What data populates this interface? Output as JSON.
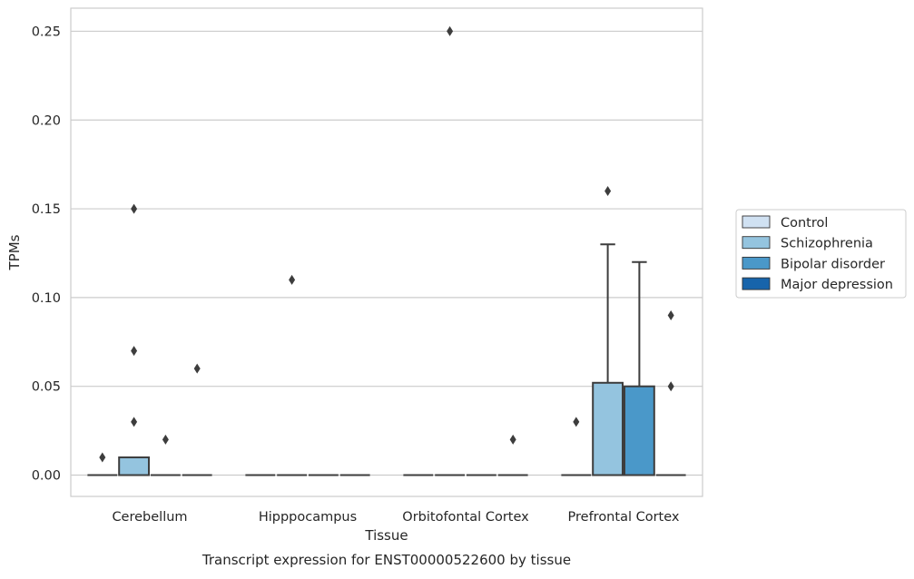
{
  "chart_data": {
    "type": "box",
    "title": "",
    "xlabel": "Tissue",
    "ylabel": "TPMs",
    "caption": "Transcript expression for ENST00000522600 by tissue",
    "ylim": [
      -0.012,
      0.263
    ],
    "yticks": [
      0.0,
      0.05,
      0.1,
      0.15,
      0.2,
      0.25
    ],
    "ytick_labels": [
      "0.00",
      "0.05",
      "0.10",
      "0.15",
      "0.20",
      "0.25"
    ],
    "grid": "horizontal",
    "legend_position": "right",
    "categories": [
      "Cerebellum",
      "Hipppocampus",
      "Orbitofontal Cortex",
      "Prefrontal Cortex"
    ],
    "series": [
      {
        "name": "Control",
        "color": "#d0e1f2",
        "boxes": [
          {
            "q1": 0,
            "median": 0,
            "q3": 0,
            "whislo": 0,
            "whishi": 0,
            "fliers": [
              0.01
            ]
          },
          {
            "q1": 0,
            "median": 0,
            "q3": 0,
            "whislo": 0,
            "whishi": 0,
            "fliers": []
          },
          {
            "q1": 0,
            "median": 0,
            "q3": 0,
            "whislo": 0,
            "whishi": 0,
            "fliers": []
          },
          {
            "q1": 0,
            "median": 0,
            "q3": 0,
            "whislo": 0,
            "whishi": 0,
            "fliers": [
              0.03
            ]
          }
        ]
      },
      {
        "name": "Schizophrenia",
        "color": "#94c4df",
        "boxes": [
          {
            "q1": 0,
            "median": 0,
            "q3": 0.01,
            "whislo": 0,
            "whishi": 0.01,
            "fliers": [
              0.03,
              0.07,
              0.15
            ]
          },
          {
            "q1": 0,
            "median": 0,
            "q3": 0,
            "whislo": 0,
            "whishi": 0,
            "fliers": [
              0.11
            ]
          },
          {
            "q1": 0,
            "median": 0,
            "q3": 0,
            "whislo": 0,
            "whishi": 0,
            "fliers": [
              0.25
            ]
          },
          {
            "q1": 0,
            "median": 0,
            "q3": 0.052,
            "whislo": 0,
            "whishi": 0.13,
            "fliers": [
              0.16
            ]
          }
        ]
      },
      {
        "name": "Bipolar disorder",
        "color": "#4a98c9",
        "boxes": [
          {
            "q1": 0,
            "median": 0,
            "q3": 0,
            "whislo": 0,
            "whishi": 0,
            "fliers": [
              0.02
            ]
          },
          {
            "q1": 0,
            "median": 0,
            "q3": 0,
            "whislo": 0,
            "whishi": 0,
            "fliers": []
          },
          {
            "q1": 0,
            "median": 0,
            "q3": 0,
            "whislo": 0,
            "whishi": 0,
            "fliers": []
          },
          {
            "q1": 0,
            "median": 0,
            "q3": 0.05,
            "whislo": 0,
            "whishi": 0.12,
            "fliers": []
          }
        ]
      },
      {
        "name": "Major depression",
        "color": "#1764ab",
        "boxes": [
          {
            "q1": 0,
            "median": 0,
            "q3": 0,
            "whislo": 0,
            "whishi": 0,
            "fliers": [
              0.06
            ]
          },
          {
            "q1": 0,
            "median": 0,
            "q3": 0,
            "whislo": 0,
            "whishi": 0,
            "fliers": []
          },
          {
            "q1": 0,
            "median": 0,
            "q3": 0,
            "whislo": 0,
            "whishi": 0,
            "fliers": [
              0.02
            ]
          },
          {
            "q1": 0,
            "median": 0,
            "q3": 0,
            "whislo": 0,
            "whishi": 0,
            "fliers": [
              0.05,
              0.09
            ]
          }
        ]
      }
    ]
  }
}
